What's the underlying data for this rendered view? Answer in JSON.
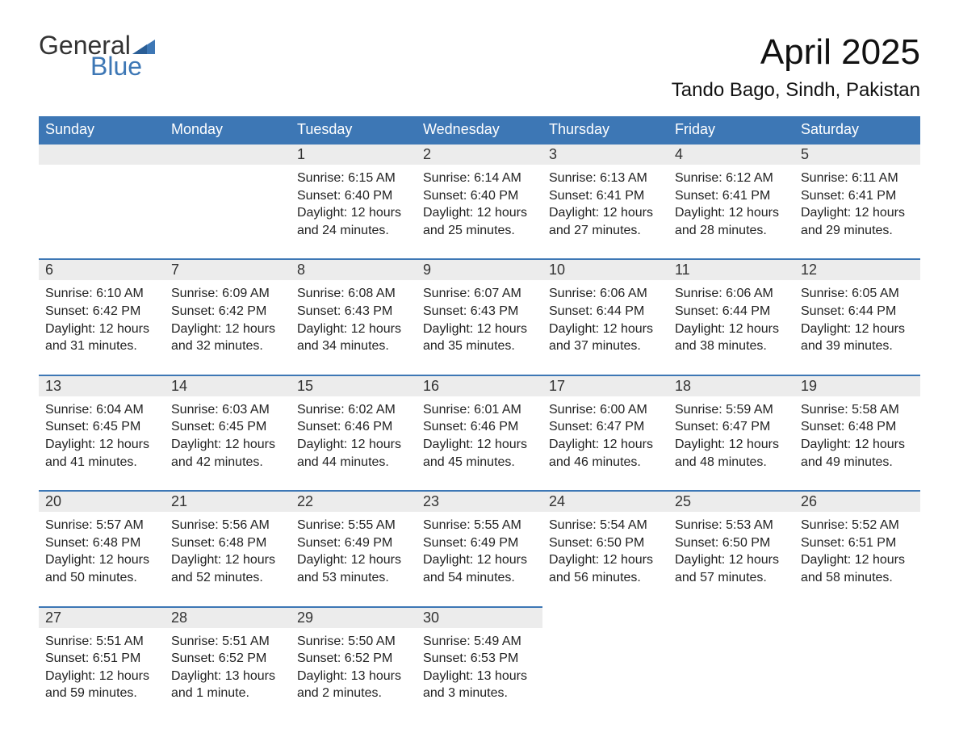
{
  "logo": {
    "text_general": "General",
    "text_blue": "Blue",
    "flag_color": "#3d77b5"
  },
  "title": "April 2025",
  "location": "Tando Bago, Sindh, Pakistan",
  "colors": {
    "header_bg": "#3d77b5",
    "header_text": "#ffffff",
    "daynum_bg": "#ececec",
    "daynum_border": "#3d77b5",
    "body_text": "#222222",
    "page_bg": "#ffffff"
  },
  "typography": {
    "title_fontsize": 44,
    "location_fontsize": 24,
    "header_fontsize": 18,
    "daynum_fontsize": 18,
    "cell_fontsize": 16
  },
  "day_headers": [
    "Sunday",
    "Monday",
    "Tuesday",
    "Wednesday",
    "Thursday",
    "Friday",
    "Saturday"
  ],
  "weeks": [
    [
      null,
      null,
      {
        "num": "1",
        "sunrise": "Sunrise: 6:15 AM",
        "sunset": "Sunset: 6:40 PM",
        "day1": "Daylight: 12 hours",
        "day2": "and 24 minutes."
      },
      {
        "num": "2",
        "sunrise": "Sunrise: 6:14 AM",
        "sunset": "Sunset: 6:40 PM",
        "day1": "Daylight: 12 hours",
        "day2": "and 25 minutes."
      },
      {
        "num": "3",
        "sunrise": "Sunrise: 6:13 AM",
        "sunset": "Sunset: 6:41 PM",
        "day1": "Daylight: 12 hours",
        "day2": "and 27 minutes."
      },
      {
        "num": "4",
        "sunrise": "Sunrise: 6:12 AM",
        "sunset": "Sunset: 6:41 PM",
        "day1": "Daylight: 12 hours",
        "day2": "and 28 minutes."
      },
      {
        "num": "5",
        "sunrise": "Sunrise: 6:11 AM",
        "sunset": "Sunset: 6:41 PM",
        "day1": "Daylight: 12 hours",
        "day2": "and 29 minutes."
      }
    ],
    [
      {
        "num": "6",
        "sunrise": "Sunrise: 6:10 AM",
        "sunset": "Sunset: 6:42 PM",
        "day1": "Daylight: 12 hours",
        "day2": "and 31 minutes."
      },
      {
        "num": "7",
        "sunrise": "Sunrise: 6:09 AM",
        "sunset": "Sunset: 6:42 PM",
        "day1": "Daylight: 12 hours",
        "day2": "and 32 minutes."
      },
      {
        "num": "8",
        "sunrise": "Sunrise: 6:08 AM",
        "sunset": "Sunset: 6:43 PM",
        "day1": "Daylight: 12 hours",
        "day2": "and 34 minutes."
      },
      {
        "num": "9",
        "sunrise": "Sunrise: 6:07 AM",
        "sunset": "Sunset: 6:43 PM",
        "day1": "Daylight: 12 hours",
        "day2": "and 35 minutes."
      },
      {
        "num": "10",
        "sunrise": "Sunrise: 6:06 AM",
        "sunset": "Sunset: 6:44 PM",
        "day1": "Daylight: 12 hours",
        "day2": "and 37 minutes."
      },
      {
        "num": "11",
        "sunrise": "Sunrise: 6:06 AM",
        "sunset": "Sunset: 6:44 PM",
        "day1": "Daylight: 12 hours",
        "day2": "and 38 minutes."
      },
      {
        "num": "12",
        "sunrise": "Sunrise: 6:05 AM",
        "sunset": "Sunset: 6:44 PM",
        "day1": "Daylight: 12 hours",
        "day2": "and 39 minutes."
      }
    ],
    [
      {
        "num": "13",
        "sunrise": "Sunrise: 6:04 AM",
        "sunset": "Sunset: 6:45 PM",
        "day1": "Daylight: 12 hours",
        "day2": "and 41 minutes."
      },
      {
        "num": "14",
        "sunrise": "Sunrise: 6:03 AM",
        "sunset": "Sunset: 6:45 PM",
        "day1": "Daylight: 12 hours",
        "day2": "and 42 minutes."
      },
      {
        "num": "15",
        "sunrise": "Sunrise: 6:02 AM",
        "sunset": "Sunset: 6:46 PM",
        "day1": "Daylight: 12 hours",
        "day2": "and 44 minutes."
      },
      {
        "num": "16",
        "sunrise": "Sunrise: 6:01 AM",
        "sunset": "Sunset: 6:46 PM",
        "day1": "Daylight: 12 hours",
        "day2": "and 45 minutes."
      },
      {
        "num": "17",
        "sunrise": "Sunrise: 6:00 AM",
        "sunset": "Sunset: 6:47 PM",
        "day1": "Daylight: 12 hours",
        "day2": "and 46 minutes."
      },
      {
        "num": "18",
        "sunrise": "Sunrise: 5:59 AM",
        "sunset": "Sunset: 6:47 PM",
        "day1": "Daylight: 12 hours",
        "day2": "and 48 minutes."
      },
      {
        "num": "19",
        "sunrise": "Sunrise: 5:58 AM",
        "sunset": "Sunset: 6:48 PM",
        "day1": "Daylight: 12 hours",
        "day2": "and 49 minutes."
      }
    ],
    [
      {
        "num": "20",
        "sunrise": "Sunrise: 5:57 AM",
        "sunset": "Sunset: 6:48 PM",
        "day1": "Daylight: 12 hours",
        "day2": "and 50 minutes."
      },
      {
        "num": "21",
        "sunrise": "Sunrise: 5:56 AM",
        "sunset": "Sunset: 6:48 PM",
        "day1": "Daylight: 12 hours",
        "day2": "and 52 minutes."
      },
      {
        "num": "22",
        "sunrise": "Sunrise: 5:55 AM",
        "sunset": "Sunset: 6:49 PM",
        "day1": "Daylight: 12 hours",
        "day2": "and 53 minutes."
      },
      {
        "num": "23",
        "sunrise": "Sunrise: 5:55 AM",
        "sunset": "Sunset: 6:49 PM",
        "day1": "Daylight: 12 hours",
        "day2": "and 54 minutes."
      },
      {
        "num": "24",
        "sunrise": "Sunrise: 5:54 AM",
        "sunset": "Sunset: 6:50 PM",
        "day1": "Daylight: 12 hours",
        "day2": "and 56 minutes."
      },
      {
        "num": "25",
        "sunrise": "Sunrise: 5:53 AM",
        "sunset": "Sunset: 6:50 PM",
        "day1": "Daylight: 12 hours",
        "day2": "and 57 minutes."
      },
      {
        "num": "26",
        "sunrise": "Sunrise: 5:52 AM",
        "sunset": "Sunset: 6:51 PM",
        "day1": "Daylight: 12 hours",
        "day2": "and 58 minutes."
      }
    ],
    [
      {
        "num": "27",
        "sunrise": "Sunrise: 5:51 AM",
        "sunset": "Sunset: 6:51 PM",
        "day1": "Daylight: 12 hours",
        "day2": "and 59 minutes."
      },
      {
        "num": "28",
        "sunrise": "Sunrise: 5:51 AM",
        "sunset": "Sunset: 6:52 PM",
        "day1": "Daylight: 13 hours",
        "day2": "and 1 minute."
      },
      {
        "num": "29",
        "sunrise": "Sunrise: 5:50 AM",
        "sunset": "Sunset: 6:52 PM",
        "day1": "Daylight: 13 hours",
        "day2": "and 2 minutes."
      },
      {
        "num": "30",
        "sunrise": "Sunrise: 5:49 AM",
        "sunset": "Sunset: 6:53 PM",
        "day1": "Daylight: 13 hours",
        "day2": "and 3 minutes."
      },
      null,
      null,
      null
    ]
  ]
}
